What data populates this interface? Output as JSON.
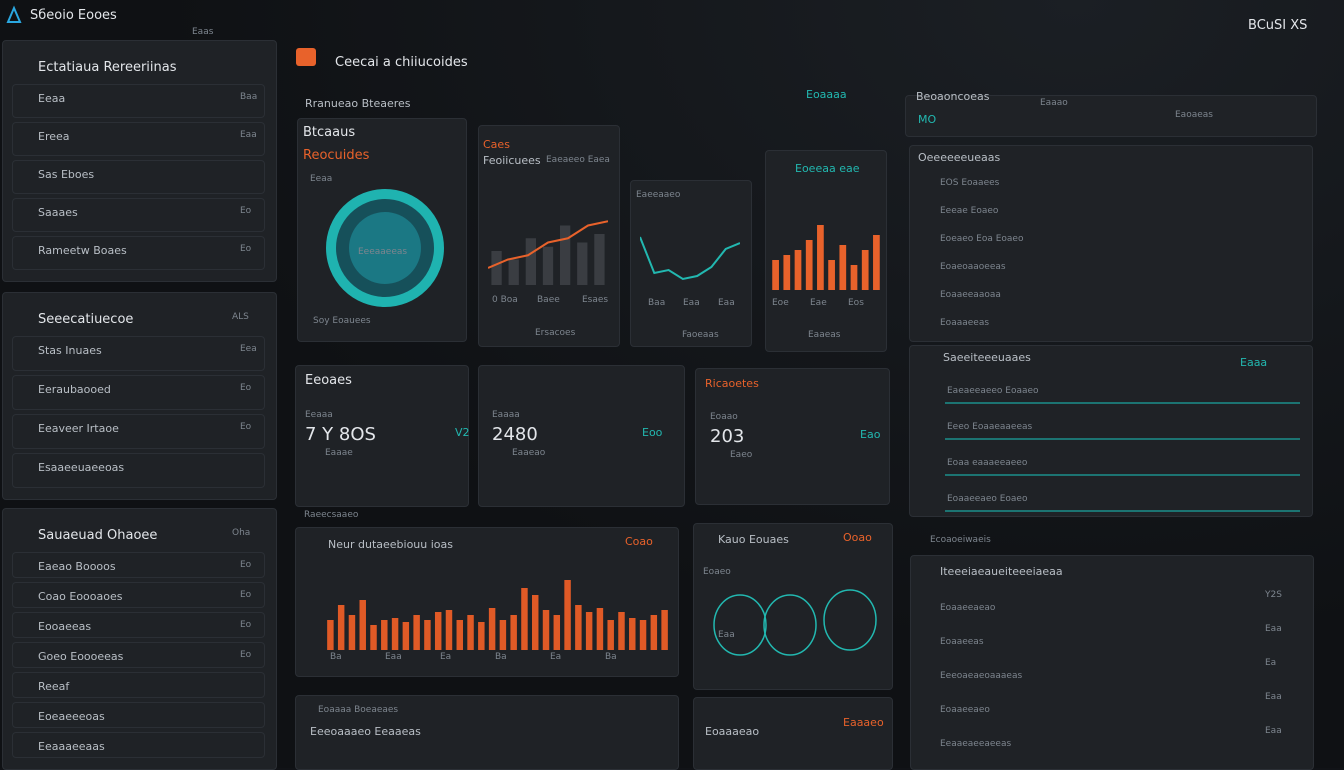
{
  "header": {
    "brand": "Sбeoio Eooes",
    "brand_tag": "Eaas",
    "top_right": "BCuSI XS"
  },
  "sidebar": [
    {
      "title": "Ectatiaua Rereeriinas",
      "items": [
        {
          "label": "Eeaa",
          "value": "Baa"
        },
        {
          "label": "Ereea",
          "value": "Eaa"
        },
        {
          "label": "Sas Eboes"
        },
        {
          "label": "Saaaes",
          "value": "Eo"
        },
        {
          "label": "Rameetw Boaes",
          "value": "Eo"
        }
      ]
    },
    {
      "title": "Seeecatiuecoe",
      "value": "ALS",
      "items": [
        {
          "label": "Stas Inuaes",
          "value": "Eea"
        },
        {
          "label": "Eeraubaooed",
          "value": "Eo"
        },
        {
          "label": "Eeaveer Irtaoe",
          "value": "Eo"
        },
        {
          "label": "Esaaeeuaeeoas"
        }
      ]
    },
    {
      "title": "Sauaeuad Ohaoee",
      "value": "Oha",
      "items": [
        {
          "label": "Eaeao Boooos",
          "value": "Eo"
        },
        {
          "label": "Coao Eoooaoes",
          "value": "Eo"
        },
        {
          "label": "Eooaeeas",
          "value": "Eo"
        },
        {
          "label": "Goeo Eoooeeas",
          "value": "Eo"
        },
        {
          "label": "Reeaf"
        },
        {
          "label": "Eoeaeeeoas"
        },
        {
          "label": "Eeaaaeeaas"
        }
      ]
    }
  ],
  "main": {
    "title": "Ceecai a chiiucoides",
    "link": "Eoaaaa",
    "section": "Rranueao Bteaeres",
    "donut": {
      "title": "Btcaaus",
      "subtitle": "Reocuides",
      "tag": "Eeaa",
      "center": "Eeeaaeeas",
      "footer": "Soy Eoauees"
    },
    "chart_a": {
      "title": "Caes",
      "subtitle": "Feoiicuees",
      "legend": "Eaeaeeo Eaea",
      "bars": [
        40,
        30,
        55,
        45,
        70,
        50,
        60
      ],
      "line": [
        20,
        30,
        35,
        50,
        55,
        70,
        75
      ],
      "labels": [
        "0 Boa",
        "Baee",
        "Esaes"
      ],
      "footer": "Ersacoes"
    },
    "chart_b": {
      "title": "Eaeeaaeo",
      "line": [
        80,
        20,
        25,
        10,
        15,
        30,
        60,
        70
      ],
      "labels": [
        "Baa",
        "Eaa",
        "Eaa"
      ],
      "footer": "Faoeaas"
    },
    "chart_c": {
      "title": "Eoeeaa eae",
      "bars": [
        30,
        35,
        40,
        50,
        65,
        30,
        45,
        25,
        40,
        55
      ],
      "labels": [
        "Eoe",
        "Eae",
        "Eos"
      ],
      "footer": "Eaaeas"
    },
    "stats": {
      "title": "Eeoaes",
      "items": [
        {
          "label": "Eeaaa",
          "value": "7 Y 8OS",
          "note": "Eaaae",
          "side": "V2"
        },
        {
          "label": "Eaaaa",
          "value": "2480",
          "note": "Eaaeao",
          "side": "Eoo"
        },
        {
          "label": "Eoaao",
          "value": "203",
          "note": "Eaeo",
          "side": "Eao"
        }
      ],
      "panel_title": "Ricaoetes"
    },
    "section2": "Raeecsaaeo",
    "big_chart": {
      "title": "Neur dutaeebiouu ioas",
      "tag": "Coao",
      "values": [
        30,
        45,
        35,
        50,
        25,
        30,
        32,
        28,
        35,
        30,
        38,
        40,
        30,
        35,
        28,
        42,
        30,
        35,
        62,
        55,
        40,
        35,
        70,
        45,
        38,
        42,
        30,
        38,
        32,
        30,
        35,
        40
      ],
      "labels": [
        "Ba",
        "Eaa",
        "Ea",
        "Ba",
        "Ea",
        "Ba"
      ]
    },
    "gauges": {
      "title": "Kauo Eouaes",
      "tag": "Ooao",
      "label": "Eoaeo",
      "center": "Eaa"
    },
    "bottom": [
      "Eoaaaa Boeaeaes",
      "Eeeoaaaeo Eeaaeas",
      "Eaaaeo",
      "Eoaaaeao"
    ]
  },
  "right": {
    "toolbar": [
      "Beoaoncoeas",
      "MO",
      "Eaaao",
      "Eaoaeas"
    ],
    "panel1": {
      "title": "Oeeeeeeueaas",
      "items": [
        "EOS Eoaaees",
        "Eeeae Eoaeo",
        "Eoeaeo Eoa Eoaeo",
        "Eoaeoaaoeeas",
        "Eoaaeeaaoaa",
        "Eoaaaeeas"
      ]
    },
    "panel2": {
      "title": "Saeeiteeeuaaes",
      "tag": "Eaaa",
      "items": [
        "Eaeaeeaeeo Eoaaeo",
        "Eeeo Eoaaeaaeeas",
        "Eoaa eaaaeeaeeo",
        "Eoaaeeaeo Eoaeo"
      ]
    },
    "section": "Ecoaoeiwaeis",
    "panel3": {
      "title": "Iteeeiaeaueiteeeiaeaa",
      "items": [
        {
          "label": "Eoaaeeaeao",
          "value": "Y2S"
        },
        {
          "label": "Eoaaeeas",
          "value": "Eaa"
        },
        {
          "label": "Eeeoaeaeoaaaeas",
          "value": "Ea"
        },
        {
          "label": "Eoaaeeaeo",
          "value": "Eaa"
        },
        {
          "label": "Eeaaeaeeaeeas",
          "value": "Eaa"
        }
      ]
    }
  }
}
